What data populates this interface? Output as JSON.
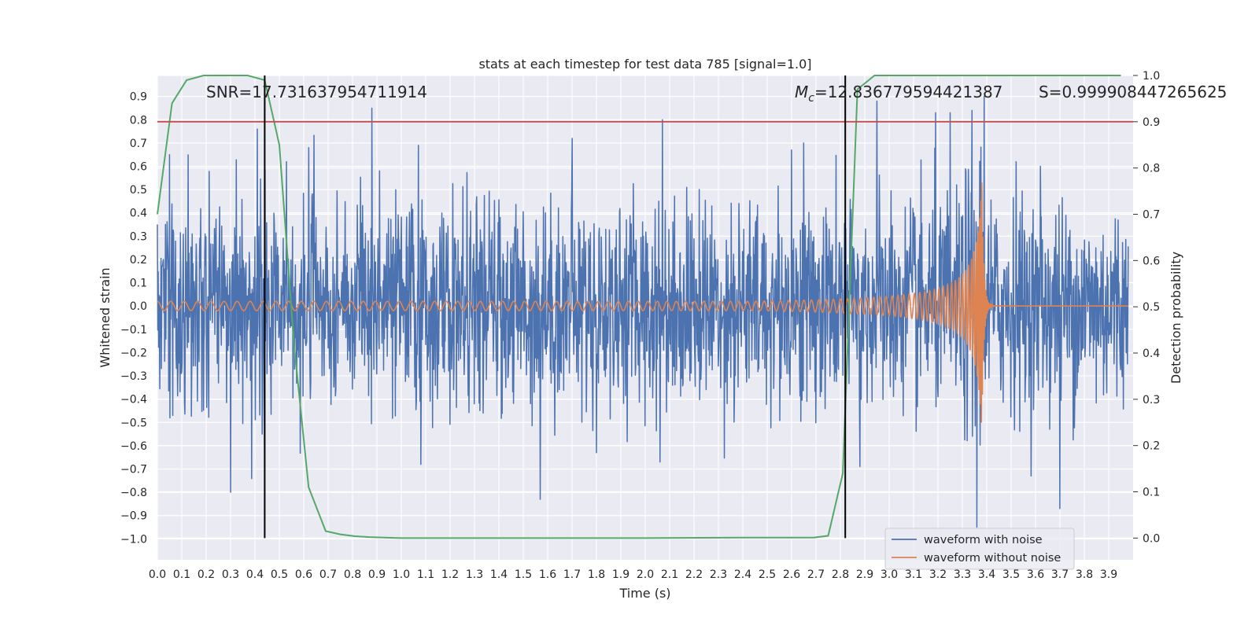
{
  "chart_data": {
    "type": "line",
    "title": "stats at each timestep for test data 785 [signal=1.0]",
    "xlabel": "Time (s)",
    "ylabel": "Whitened strain",
    "ylabel_right": "Detection probability",
    "xlim": [
      0.0,
      4.0
    ],
    "ylim": [
      -1.09,
      0.99
    ],
    "ylim_right": [
      -0.047,
      1.0
    ],
    "x_ticks": [
      "0.0",
      "0.1",
      "0.2",
      "0.3",
      "0.4",
      "0.5",
      "0.6",
      "0.7",
      "0.8",
      "0.9",
      "1.0",
      "1.1",
      "1.2",
      "1.3",
      "1.4",
      "1.5",
      "1.6",
      "1.7",
      "1.8",
      "1.9",
      "2.0",
      "2.1",
      "2.2",
      "2.3",
      "2.4",
      "2.5",
      "2.6",
      "2.7",
      "2.8",
      "2.9",
      "3.0",
      "3.1",
      "3.2",
      "3.3",
      "3.4",
      "3.5",
      "3.6",
      "3.7",
      "3.8",
      "3.9"
    ],
    "y_ticks": [
      "0.9",
      "0.8",
      "0.7",
      "0.6",
      "0.5",
      "0.4",
      "0.3",
      "0.2",
      "0.1",
      "0.0",
      "−0.1",
      "−0.2",
      "−0.3",
      "−0.4",
      "−0.5",
      "−0.6",
      "−0.7",
      "−0.8",
      "−0.9",
      "−1.0"
    ],
    "y_ticks_right": [
      "1.0",
      "0.9",
      "0.8",
      "0.7",
      "0.6",
      "0.5",
      "0.4",
      "0.3",
      "0.2",
      "0.1",
      "0.0"
    ],
    "annotations": {
      "snr": "SNR=17.731637954711914",
      "mc_symbol": "M",
      "mc_sub": "c",
      "mc_value": "=12.836779594421387",
      "s": "S=0.999908447265625"
    },
    "threshold": {
      "value": 0.9,
      "axis": "right",
      "color": "#c44e52"
    },
    "vlines": [
      0.44,
      2.82
    ],
    "series": [
      {
        "name": "waveform with noise",
        "color": "#4c72b0",
        "kind": "noise",
        "sigma": 0.22,
        "samples": 2400,
        "spikes": [
          [
            0.0,
            0.35
          ],
          [
            0.05,
            0.65
          ],
          [
            0.3,
            -0.8
          ],
          [
            0.41,
            0.76
          ],
          [
            0.43,
            -0.55
          ],
          [
            0.44,
            -0.7
          ],
          [
            0.53,
            0.62
          ],
          [
            0.62,
            0.68
          ],
          [
            0.88,
            0.85
          ],
          [
            0.91,
            0.58
          ],
          [
            1.07,
            0.69
          ],
          [
            1.08,
            -0.68
          ],
          [
            1.57,
            -0.83
          ],
          [
            1.7,
            0.72
          ],
          [
            1.8,
            -0.63
          ],
          [
            2.06,
            -0.67
          ],
          [
            2.07,
            0.8
          ],
          [
            2.6,
            0.67
          ],
          [
            2.65,
            0.7
          ],
          [
            2.88,
            -0.69
          ],
          [
            2.95,
            0.88
          ],
          [
            3.19,
            0.83
          ],
          [
            3.25,
            0.83
          ],
          [
            3.34,
            0.84
          ],
          [
            3.36,
            -0.95
          ],
          [
            3.39,
            0.92
          ],
          [
            3.52,
            0.62
          ],
          [
            3.62,
            0.6
          ],
          [
            3.7,
            -0.87
          ]
        ]
      },
      {
        "name": "waveform without noise",
        "color": "#dd8452",
        "kind": "chirp",
        "merger_time": 3.38,
        "merger_peak": 0.54
      },
      {
        "name": "Detection probability",
        "color": "#55a868",
        "axis": "right",
        "x": [
          0.0,
          0.06,
          0.12,
          0.19,
          0.25,
          0.31,
          0.37,
          0.44,
          0.5,
          0.56,
          0.62,
          0.69,
          0.75,
          0.81,
          0.87,
          1.0,
          1.5,
          2.0,
          2.4,
          2.6,
          2.69,
          2.75,
          2.81,
          2.87,
          2.94,
          3.0,
          3.5,
          3.95
        ],
        "y": [
          0.7,
          0.94,
          0.99,
          1.0,
          1.0,
          1.0,
          1.0,
          0.99,
          0.85,
          0.42,
          0.11,
          0.015,
          0.008,
          0.004,
          0.002,
          0.0,
          0.0,
          0.0,
          0.001,
          0.001,
          0.001,
          0.005,
          0.14,
          0.97,
          1.0,
          1.0,
          1.0,
          1.0
        ]
      }
    ],
    "legend": {
      "placement": "bottom-right",
      "entries": [
        "waveform with noise",
        "waveform without noise"
      ]
    },
    "grid": true,
    "background": "#eaeaf2"
  }
}
